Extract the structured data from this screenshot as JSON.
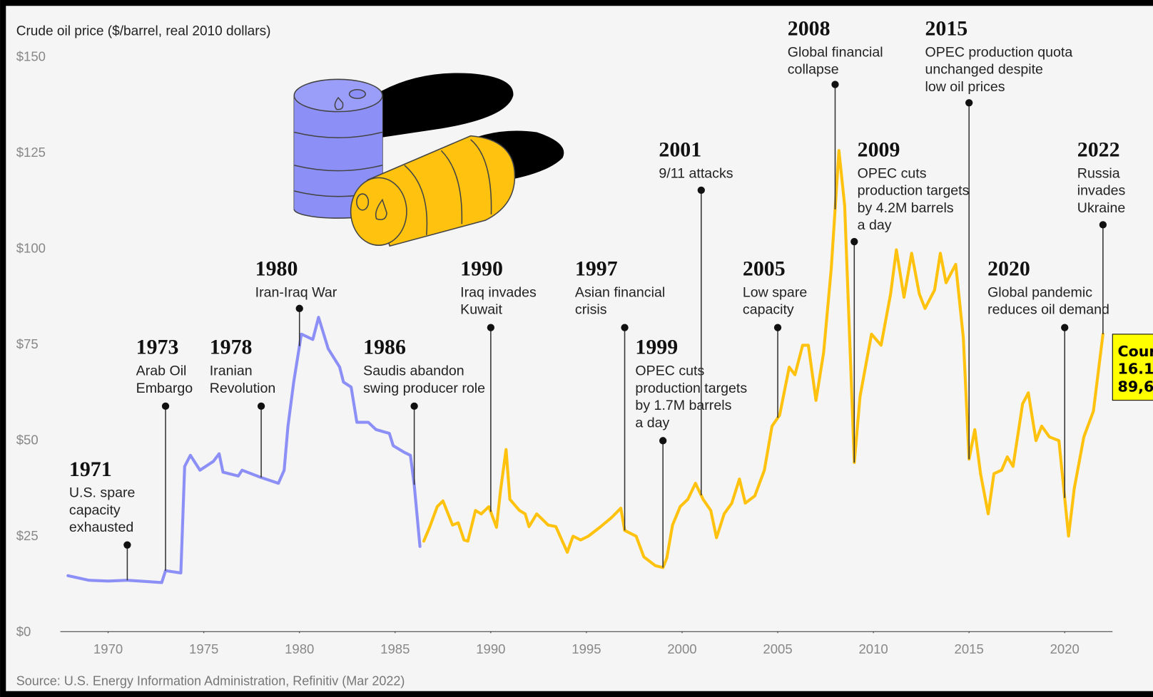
{
  "chart_data": {
    "type": "line",
    "title": "Crude oil price ($/barrel, real 2010 dollars)",
    "source": "Source: U.S. Energy Information Administration, Refinitiv (Mar 2022)",
    "xlim": [
      1967.5,
      2022.5
    ],
    "ylim": [
      0,
      150
    ],
    "xticks": [
      1970,
      1975,
      1980,
      1985,
      1990,
      1995,
      2000,
      2005,
      2010,
      2015,
      2020
    ],
    "yticks": [
      {
        "value": 0,
        "label": "$0"
      },
      {
        "value": 25,
        "label": "$25"
      },
      {
        "value": 50,
        "label": "$50"
      },
      {
        "value": 75,
        "label": "$75"
      },
      {
        "value": 100,
        "label": "$100"
      },
      {
        "value": 125,
        "label": "$125"
      },
      {
        "value": 150,
        "label": "$150"
      }
    ],
    "grid": false,
    "series": [
      {
        "color": "#8c8ff5",
        "x": [
          1967.9,
          1969.0,
          1970.0,
          1971.0,
          1972.2,
          1972.8,
          1973.0,
          1973.8,
          1974.0,
          1974.3,
          1974.8,
          1975.5,
          1975.8,
          1976.0,
          1976.8,
          1977.0,
          1978.0,
          1978.9,
          1979.2,
          1979.4,
          1979.7,
          1980.1,
          1980.7,
          1981.0,
          1981.5,
          1982.1,
          1982.3,
          1982.7,
          1983.0,
          1983.6,
          1984.0,
          1984.7,
          1984.9,
          1985.5,
          1985.8,
          1986.0,
          1986.3
        ],
        "values": [
          14.6,
          13.4,
          13.2,
          13.4,
          13.0,
          12.8,
          15.9,
          15.3,
          43.1,
          46.0,
          42.1,
          44.4,
          46.4,
          41.6,
          40.6,
          42.1,
          40.2,
          38.7,
          42.1,
          53.6,
          65.1,
          77.6,
          76.2,
          82.0,
          73.8,
          69.0,
          65.1,
          63.8,
          54.6,
          54.6,
          52.7,
          51.7,
          48.5,
          46.7,
          46.0,
          38.3,
          22.2
        ]
      },
      {
        "color": "#ffc20e",
        "x": [
          1986.5,
          1986.8,
          1987.2,
          1987.5,
          1988.0,
          1988.3,
          1988.6,
          1988.8,
          1989.2,
          1989.5,
          1989.9,
          1990.3,
          1990.5,
          1990.8,
          1991.0,
          1991.5,
          1991.8,
          1992.0,
          1992.4,
          1993.0,
          1993.4,
          1994.0,
          1994.3,
          1994.7,
          1995.1,
          1995.7,
          1996.3,
          1996.8,
          1997.0,
          1997.6,
          1998.0,
          1998.6,
          1999.0,
          1999.2,
          1999.5,
          1999.9,
          2000.3,
          2000.7,
          2001.1,
          2001.5,
          2001.8,
          2002.2,
          2002.6,
          2003.0,
          2003.3,
          2003.8,
          2004.3,
          2004.7,
          2005.1,
          2005.6,
          2005.9,
          2006.3,
          2006.6,
          2007.0,
          2007.4,
          2007.8,
          2008.2,
          2008.5,
          2008.8,
          2009.0,
          2009.3,
          2009.9,
          2010.4,
          2010.9,
          2011.2,
          2011.6,
          2012.0,
          2012.4,
          2012.7,
          2013.2,
          2013.5,
          2013.8,
          2014.3,
          2014.7,
          2015.0,
          2015.3,
          2015.6,
          2016.0,
          2016.3,
          2016.7,
          2017.0,
          2017.3,
          2017.8,
          2018.1,
          2018.5,
          2018.8,
          2019.2,
          2019.7,
          2020.2,
          2020.5,
          2021.0,
          2021.5,
          2022.0
        ],
        "values": [
          23.6,
          27.2,
          32.6,
          34.1,
          27.8,
          28.4,
          23.9,
          23.6,
          31.6,
          30.7,
          32.6,
          27.2,
          36.4,
          47.5,
          34.5,
          31.6,
          30.7,
          27.4,
          30.7,
          27.8,
          27.4,
          20.7,
          24.9,
          23.9,
          24.9,
          27.2,
          29.7,
          32.2,
          26.4,
          24.9,
          19.5,
          17.2,
          16.7,
          19.2,
          27.8,
          32.6,
          34.5,
          38.7,
          34.5,
          31.6,
          24.5,
          30.7,
          33.5,
          39.8,
          33.5,
          35.4,
          42.1,
          53.6,
          56.5,
          69.0,
          67.0,
          74.7,
          74.7,
          60.3,
          72.8,
          94.8,
          125.5,
          111.1,
          70.9,
          44.1,
          61.3,
          77.6,
          74.7,
          88.1,
          99.6,
          87.2,
          98.7,
          88.1,
          84.3,
          89.1,
          98.7,
          91.0,
          95.8,
          76.6,
          45.0,
          52.7,
          41.2,
          30.7,
          41.2,
          42.1,
          45.6,
          43.1,
          59.4,
          62.3,
          49.8,
          53.6,
          50.8,
          49.8,
          24.9,
          37.4,
          50.8,
          57.5,
          77.6
        ]
      }
    ],
    "annotations": [
      {
        "year": 1971,
        "lines": [
          "U.S. spare",
          "capacity",
          "exhausted"
        ]
      },
      {
        "year": 1973,
        "lines": [
          "Arab Oil",
          "Embargo"
        ]
      },
      {
        "year": 1978,
        "lines": [
          "Iranian",
          "Revolution"
        ]
      },
      {
        "year": 1980,
        "lines": [
          "Iran-Iraq War"
        ]
      },
      {
        "year": 1986,
        "lines": [
          "Saudis abandon",
          "swing producer role"
        ]
      },
      {
        "year": 1990,
        "lines": [
          "Iraq invades",
          "Kuwait"
        ]
      },
      {
        "year": 1997,
        "lines": [
          "Asian financial",
          "crisis"
        ]
      },
      {
        "year": 1999,
        "lines": [
          "OPEC cuts",
          "production targets",
          "by 1.7M barrels",
          "a day"
        ]
      },
      {
        "year": 2001,
        "lines": [
          "9/11 attacks"
        ]
      },
      {
        "year": 2005,
        "lines": [
          "Low spare",
          "capacity"
        ]
      },
      {
        "year": 2008,
        "lines": [
          "Global financial",
          "collapse"
        ]
      },
      {
        "year": 2009,
        "lines": [
          "OPEC cuts",
          "production targets",
          "by 4.2M barrels",
          "a day"
        ]
      },
      {
        "year": 2015,
        "lines": [
          "OPEC production quota",
          "unchanged despite",
          "low oil prices"
        ]
      },
      {
        "year": 2020,
        "lines": [
          "Global pandemic",
          "reduces oil demand"
        ]
      },
      {
        "year": 2022,
        "lines": [
          "Russia",
          "invades",
          "Ukraine"
        ]
      }
    ],
    "overlay": {
      "lines": [
        "Cour",
        "16.1",
        "89,6"
      ]
    }
  }
}
